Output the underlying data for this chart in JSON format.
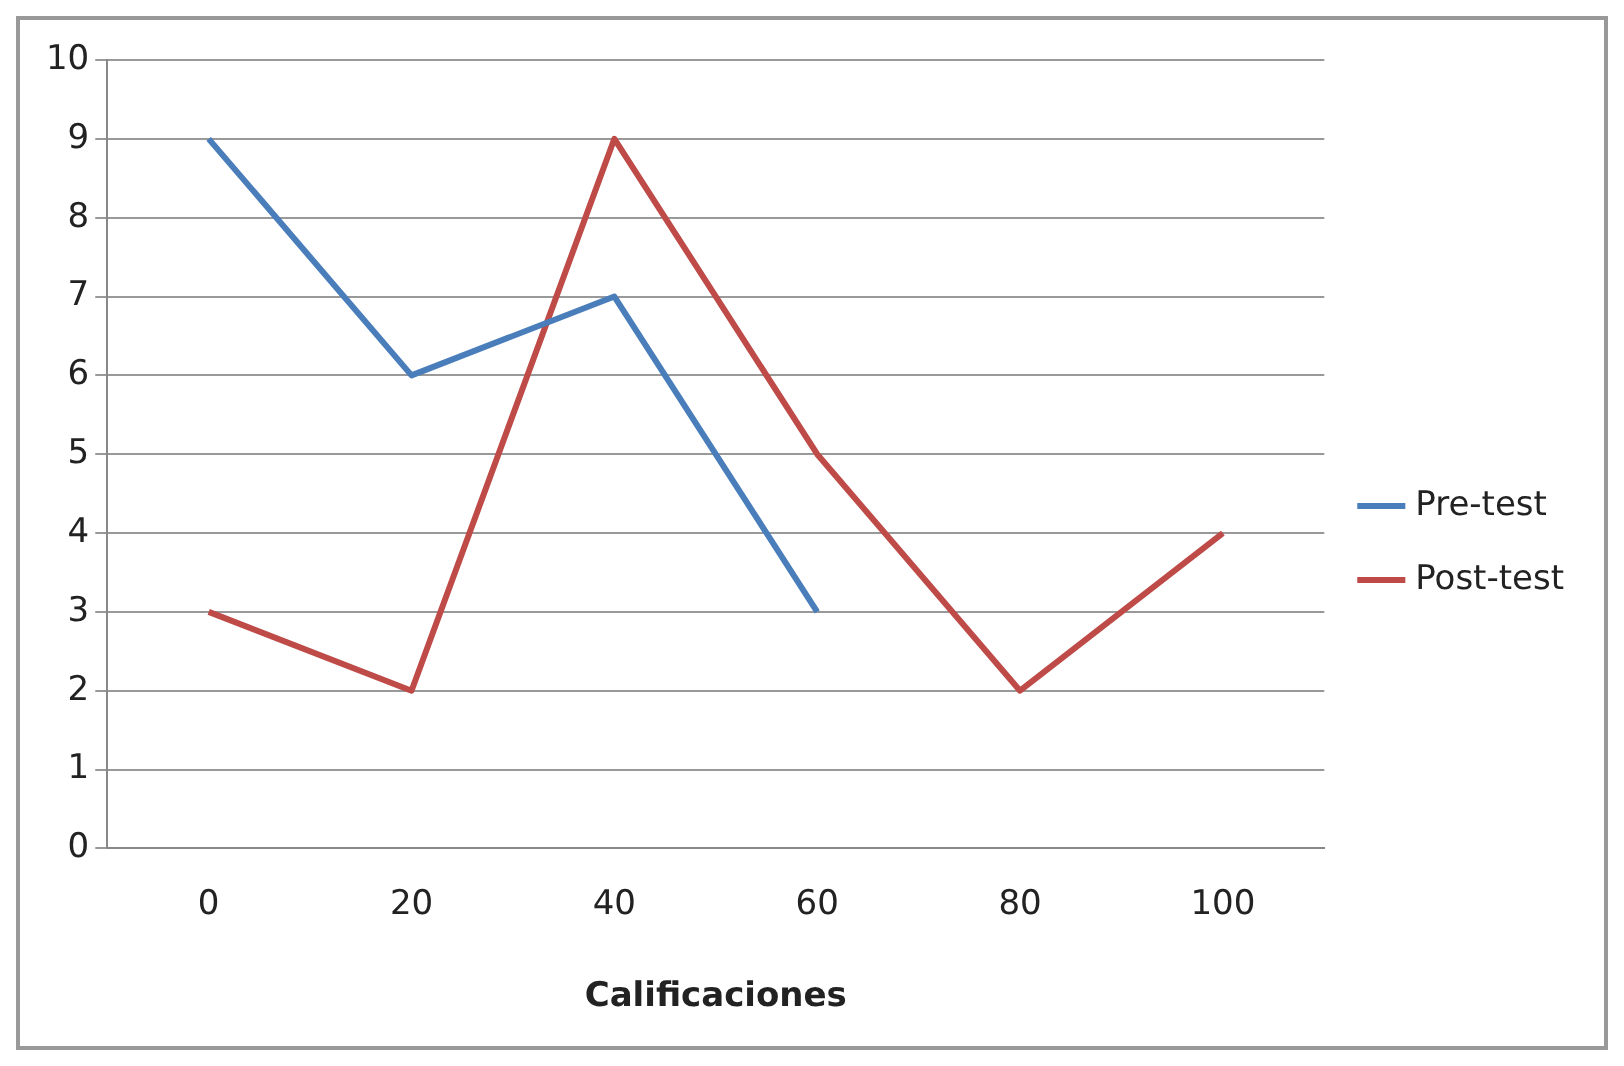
{
  "chart_data": {
    "type": "line",
    "xlabel": "Calificaciones",
    "categories": [
      "0",
      "20",
      "40",
      "60",
      "80",
      "100"
    ],
    "series": [
      {
        "name": "Pre-test",
        "color": "#4a7ebb",
        "values": [
          9,
          6,
          7,
          3,
          null,
          null
        ]
      },
      {
        "name": "Post-test",
        "color": "#be4b48",
        "values": [
          3,
          2,
          9,
          5,
          2,
          4
        ]
      }
    ],
    "ylim": [
      0,
      10
    ],
    "yticks": [
      0,
      1,
      2,
      3,
      4,
      5,
      6,
      7,
      8,
      9,
      10
    ],
    "grid": "y",
    "legend": "right",
    "marker": "none",
    "line_style": "solid"
  }
}
